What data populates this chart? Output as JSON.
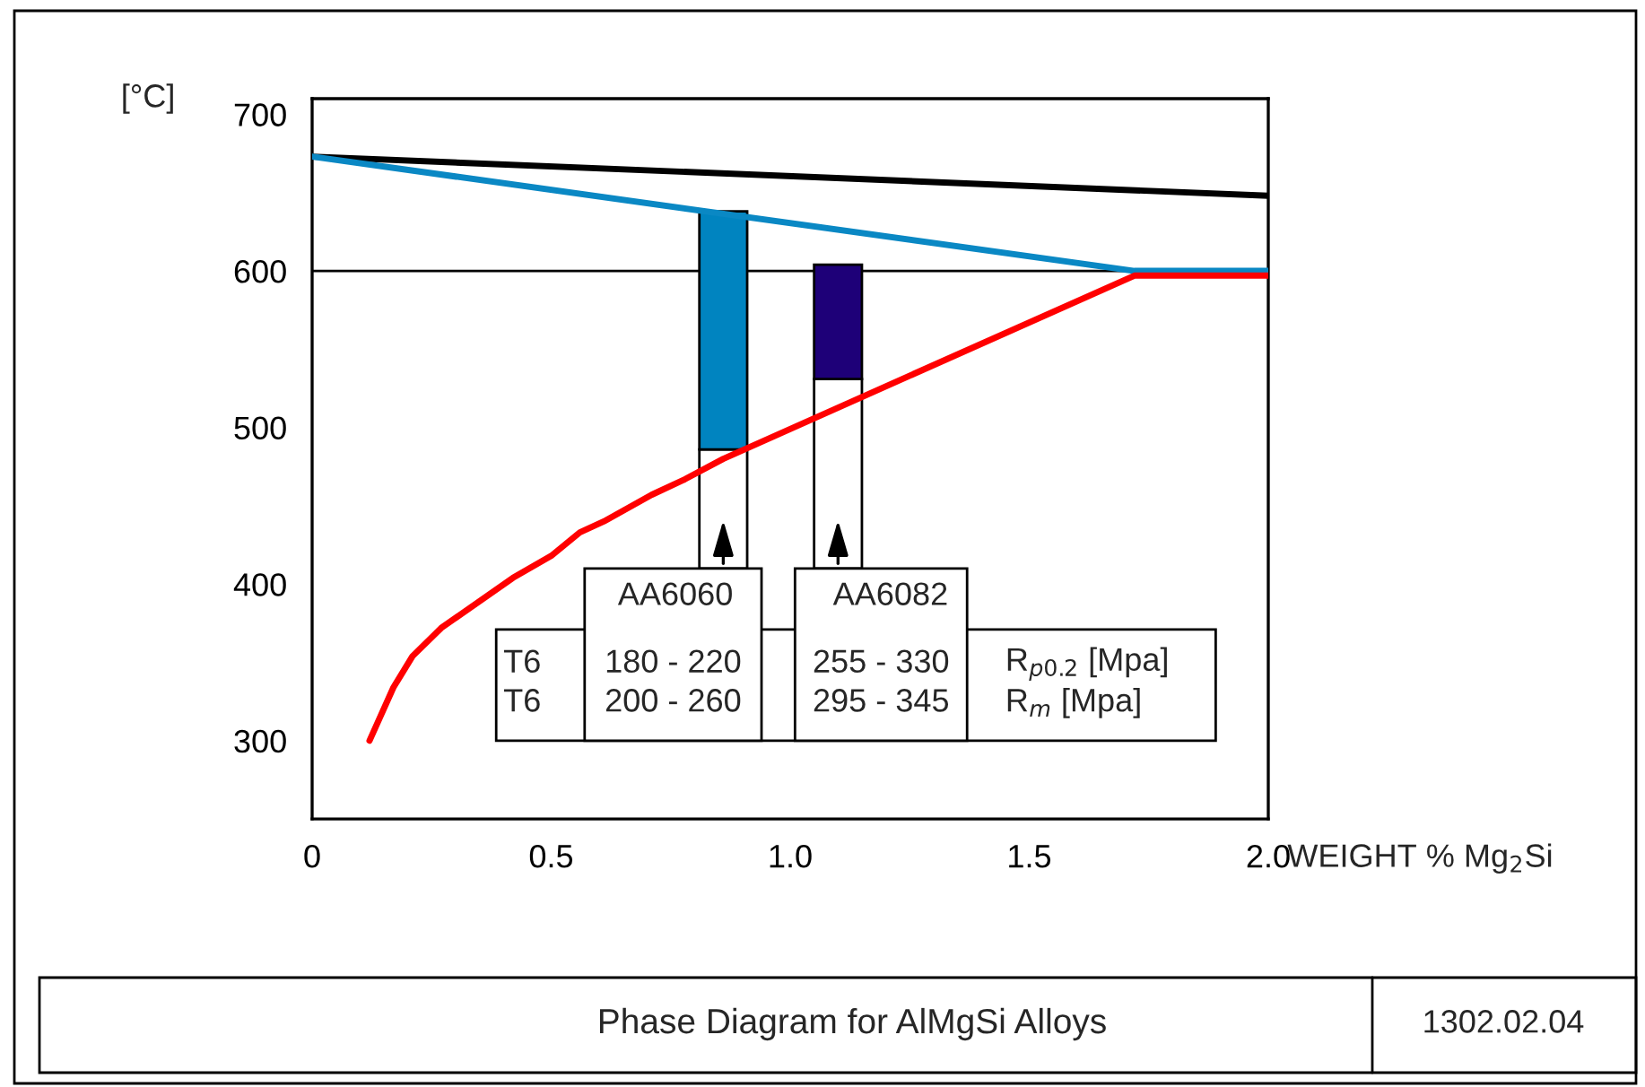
{
  "chart_data": {
    "type": "line",
    "title": "Phase Diagram for AlMgSi Alloys",
    "ylabel": "[°C]",
    "xlabel": "WEIGHT % Mg$_{2}$Si",
    "xlim": [
      0,
      2.0
    ],
    "ylim": [
      250,
      710
    ],
    "xticks": [
      0,
      0.5,
      {
        "value": 1.0,
        "label": "1.0"
      },
      1.5,
      {
        "value": 2.0,
        "label": "2.0"
      }
    ],
    "yticks": [
      300,
      400,
      500,
      600,
      700
    ],
    "grid": false,
    "ref_lines": [
      {
        "axis": "y",
        "value": 600,
        "color": "#000000"
      }
    ],
    "series": [
      {
        "color": "#000000",
        "x": [
          0,
          2.0
        ],
        "values": [
          673,
          648
        ]
      },
      {
        "color": "#0a88c4",
        "x": [
          0,
          1.72,
          2.0
        ],
        "values": [
          673,
          600,
          600
        ]
      },
      {
        "color": "#ff0000",
        "x": [
          0.12,
          0.17,
          0.21,
          0.27,
          0.42,
          0.5,
          0.56,
          0.61,
          0.71,
          0.78,
          0.86,
          1.72,
          2.0
        ],
        "values": [
          300,
          334,
          354,
          372,
          404,
          418,
          433,
          440,
          457,
          467,
          480,
          597,
          597
        ]
      },
      {
        "type": "bar",
        "color": "#0084c0",
        "x": [
          0.86
        ],
        "base": [
          486
        ],
        "values": [
          152
        ]
      },
      {
        "type": "bar",
        "color": "#1e0078",
        "x": [
          1.1
        ],
        "base": [
          531
        ],
        "values": [
          73
        ]
      }
    ],
    "annotations": [
      "AA6060",
      "AA6082",
      "T6",
      "180 - 220",
      "255 - 330",
      "R$_{p0.2}$ [Mpa]",
      "T6",
      "200 - 260",
      "295 - 345",
      "R$_{m}$ [Mpa]",
      "1302.02.04"
    ]
  }
}
